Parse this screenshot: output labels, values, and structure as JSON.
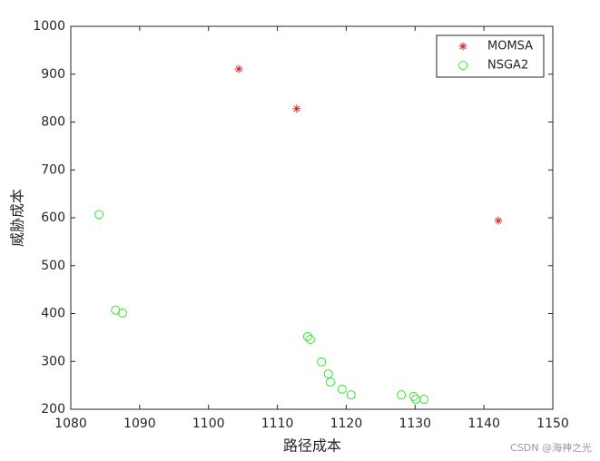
{
  "chart_data": {
    "type": "scatter",
    "xlabel": "路径成本",
    "ylabel": "威胁成本",
    "xlim": [
      1080,
      1150
    ],
    "xticks": [
      1080,
      1090,
      1100,
      1110,
      1120,
      1130,
      1140,
      1150
    ],
    "ylim": [
      200,
      1000
    ],
    "yticks": [
      200,
      300,
      400,
      500,
      600,
      700,
      800,
      900,
      1000
    ],
    "legend": "northeast",
    "series": [
      {
        "name": "MOMSA",
        "color": "#d62728",
        "marker": "*",
        "x": [
          1104.4,
          1112.8,
          1142.1
        ],
        "values": [
          911,
          828,
          594
        ]
      },
      {
        "name": "NSGA2",
        "color": "#33e633",
        "marker": "o",
        "x": [
          1084.1,
          1086.5,
          1087.5,
          1114.4,
          1114.8,
          1116.4,
          1117.4,
          1117.7,
          1119.4,
          1120.7,
          1128.0,
          1129.8,
          1130.1,
          1131.3
        ],
        "values": [
          607,
          407,
          401,
          352,
          346,
          299,
          274,
          257,
          242,
          230,
          230,
          227,
          221,
          221
        ]
      }
    ],
    "watermark": "CSDN @海神之光"
  }
}
